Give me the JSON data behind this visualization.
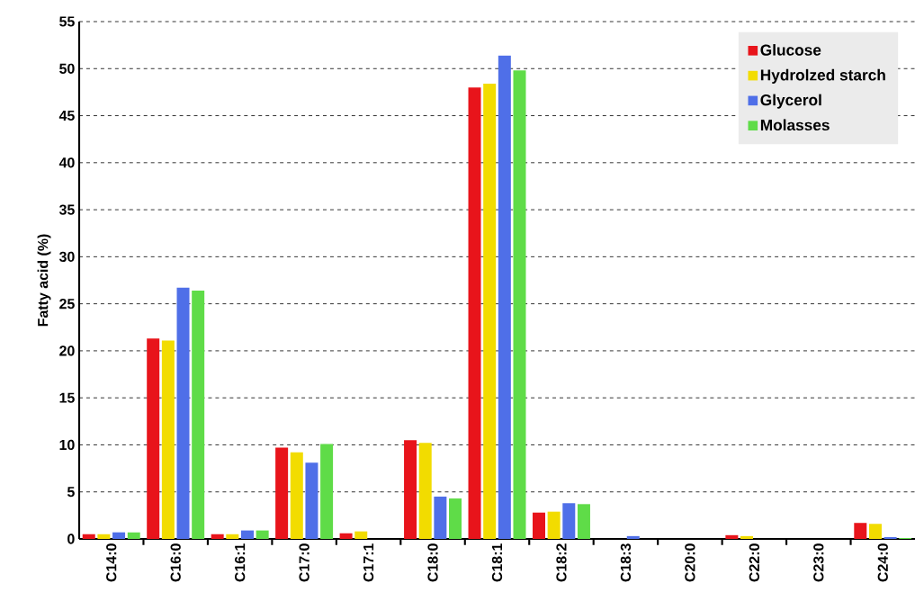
{
  "chart_data": {
    "type": "bar",
    "ylabel": "Fatty acid (%)",
    "categories": [
      "C14:0",
      "C16:0",
      "C16:1",
      "C17:0",
      "C17:1",
      "C18:0",
      "C18:1",
      "C18:2",
      "C18:3",
      "C20:0",
      "C22:0",
      "C23:0",
      "C24:0"
    ],
    "series": [
      {
        "name": "Glucose",
        "color": "#e8141b",
        "values": [
          0.5,
          21.3,
          0.5,
          9.7,
          0.6,
          10.5,
          48.0,
          2.8,
          0,
          0,
          0.4,
          0,
          1.7
        ]
      },
      {
        "name": "Hydrolzed starch",
        "color": "#f2dc00",
        "values": [
          0.5,
          21.1,
          0.5,
          9.2,
          0.8,
          10.2,
          48.4,
          2.9,
          0,
          0,
          0.3,
          0,
          1.6
        ]
      },
      {
        "name": "Glycerol",
        "color": "#4f6fe8",
        "values": [
          0.7,
          26.7,
          0.9,
          8.1,
          0,
          4.5,
          51.4,
          3.8,
          0.3,
          0,
          0,
          0,
          0.2
        ]
      },
      {
        "name": "Molasses",
        "color": "#5fdc48",
        "values": [
          0.7,
          26.4,
          0.9,
          10.1,
          0,
          4.3,
          49.8,
          3.7,
          0,
          0,
          0,
          0,
          0.1
        ]
      }
    ],
    "ylim": [
      0,
      55
    ],
    "yticks": [
      0,
      5,
      10,
      15,
      20,
      25,
      30,
      35,
      40,
      45,
      50,
      55
    ],
    "grid": "y",
    "legend": "top right"
  }
}
